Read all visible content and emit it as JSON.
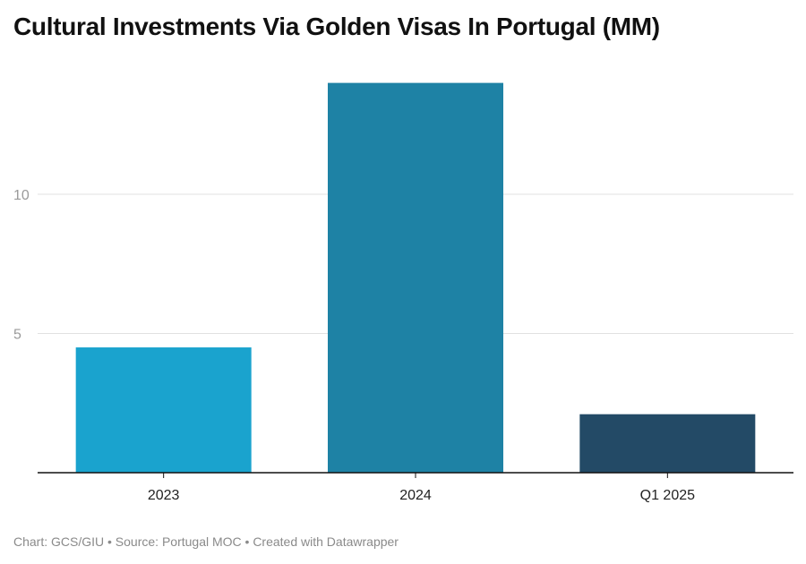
{
  "chart_data": {
    "type": "bar",
    "title": "Cultural Investments Via Golden Visas In Portugal (MM)",
    "xlabel": "",
    "ylabel": "",
    "categories": [
      "2023",
      "2024",
      "Q1 2025"
    ],
    "values": [
      4.5,
      14,
      2.1
    ],
    "colors": [
      "#1aa3ce",
      "#1e82a5",
      "#234a66"
    ],
    "ylim": [
      0,
      14
    ],
    "yticks": [
      5,
      10
    ],
    "ytick_labels": [
      "5",
      "10"
    ],
    "grid": true,
    "legend": "none"
  },
  "footer": {
    "credit": "Chart: GCS/GIU • Source: Portugal MOC • Created with Datawrapper"
  }
}
